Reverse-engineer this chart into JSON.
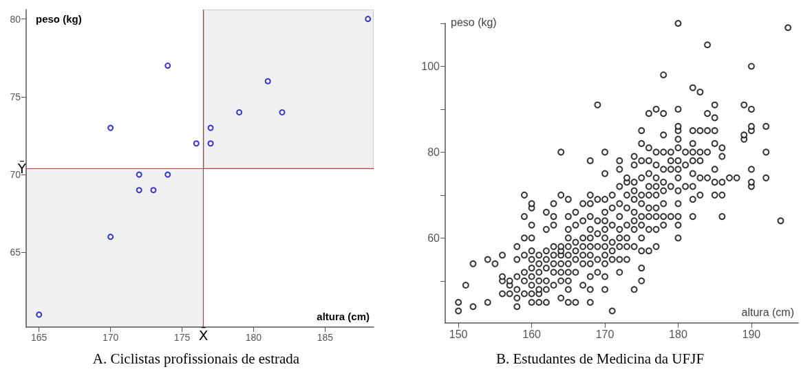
{
  "chart_data": [
    {
      "type": "scatter",
      "title": "A. Ciclistas profissionais de estrada",
      "xlabel": "altura (cm)",
      "ylabel": "peso (kg)",
      "x": [
        165,
        170,
        170,
        172,
        172,
        173,
        174,
        174,
        176,
        177,
        177,
        179,
        181,
        182,
        188
      ],
      "values": [
        61,
        73,
        66,
        70,
        69,
        69,
        77,
        70,
        72,
        73,
        72,
        74,
        76,
        74,
        80
      ],
      "color": "#0000cc",
      "marker": "circle",
      "grid": false,
      "xlim": [
        164.1,
        188.4
      ],
      "ylim": [
        60.2,
        80.6
      ],
      "xticks": [
        165,
        170,
        175,
        180,
        185
      ],
      "yticks": [
        65,
        70,
        75,
        80
      ],
      "ref_lines": [
        {
          "axis": "x",
          "value": 176.5,
          "label": "X̄",
          "color": "#cc3333"
        },
        {
          "axis": "y",
          "value": 70.4,
          "label": "Ȳ",
          "color": "#cc3333"
        }
      ]
    },
    {
      "type": "scatter",
      "title": "B. Estudantes de Medicina da UFJF",
      "xlabel": "altura (cm)",
      "ylabel": "peso (kg)",
      "x": [
        150,
        150,
        151,
        152,
        152,
        154,
        154,
        155,
        156,
        156,
        156,
        156,
        157,
        157,
        157,
        158,
        158,
        158,
        158,
        158,
        158,
        159,
        159,
        159,
        159,
        159,
        159,
        159,
        160,
        160,
        160,
        160,
        160,
        160,
        160,
        160,
        160,
        160,
        160,
        161,
        161,
        161,
        161,
        161,
        161,
        161,
        162,
        162,
        162,
        162,
        162,
        162,
        162,
        162,
        163,
        163,
        163,
        163,
        163,
        163,
        163,
        163,
        164,
        164,
        164,
        164,
        164,
        164,
        164,
        164,
        164,
        165,
        165,
        165,
        165,
        165,
        165,
        165,
        165,
        165,
        165,
        165,
        166,
        166,
        166,
        166,
        166,
        166,
        166,
        167,
        167,
        167,
        167,
        167,
        167,
        167,
        168,
        168,
        168,
        168,
        168,
        168,
        168,
        168,
        168,
        168,
        168,
        168,
        169,
        169,
        169,
        169,
        169,
        169,
        169,
        170,
        170,
        170,
        170,
        170,
        170,
        170,
        170,
        170,
        170,
        170,
        170,
        171,
        171,
        171,
        171,
        171,
        171,
        171,
        172,
        172,
        172,
        172,
        172,
        172,
        172,
        172,
        172,
        172,
        173,
        173,
        173,
        173,
        173,
        173,
        173,
        173,
        174,
        174,
        174,
        174,
        174,
        174,
        174,
        174,
        174,
        174,
        175,
        175,
        175,
        175,
        175,
        175,
        175,
        175,
        175,
        175,
        175,
        175,
        176,
        176,
        176,
        176,
        176,
        176,
        176,
        176,
        176,
        176,
        177,
        177,
        177,
        177,
        177,
        177,
        177,
        177,
        177,
        177,
        178,
        178,
        178,
        178,
        178,
        178,
        178,
        178,
        178,
        178,
        179,
        179,
        179,
        179,
        179,
        180,
        180,
        180,
        180,
        180,
        180,
        180,
        180,
        180,
        180,
        180,
        180,
        180,
        180,
        181,
        181,
        181,
        182,
        182,
        182,
        182,
        182,
        182,
        182,
        182,
        182,
        183,
        183,
        183,
        183,
        183,
        183,
        184,
        184,
        184,
        184,
        184,
        185,
        185,
        185,
        185,
        185,
        185,
        185,
        186,
        186,
        186,
        186,
        186,
        187,
        188,
        189,
        189,
        189,
        190,
        190,
        190,
        190,
        190,
        190,
        190,
        192,
        192,
        192,
        194,
        195
      ],
      "values": [
        43,
        45,
        49,
        44,
        54,
        45,
        55,
        54,
        47,
        50,
        51,
        56,
        47,
        49,
        50,
        44,
        46,
        48,
        51,
        55,
        58,
        47,
        50,
        52,
        56,
        60,
        65,
        70,
        45,
        47,
        49,
        51,
        53,
        55,
        57,
        60,
        63,
        67,
        68,
        45,
        47,
        48,
        50,
        52,
        54,
        56,
        45,
        48,
        50,
        53,
        55,
        57,
        62,
        66,
        49,
        52,
        54,
        56,
        58,
        63,
        65,
        68,
        46,
        50,
        52,
        54,
        56,
        57,
        58,
        70,
        80,
        45,
        48,
        50,
        52,
        54,
        56,
        58,
        60,
        62,
        65,
        69,
        45,
        52,
        55,
        57,
        59,
        63,
        66,
        49,
        54,
        56,
        58,
        60,
        64,
        68,
        45,
        48,
        51,
        54,
        56,
        58,
        60,
        62,
        65,
        68,
        70,
        78,
        52,
        55,
        58,
        61,
        64,
        69,
        91,
        48,
        51,
        54,
        56,
        58,
        60,
        62,
        64,
        66,
        69,
        75,
        80,
        43,
        55,
        57,
        59,
        63,
        67,
        70,
        52,
        55,
        58,
        60,
        62,
        65,
        68,
        72,
        76,
        78,
        55,
        58,
        60,
        63,
        67,
        70,
        73,
        74,
        48,
        58,
        62,
        64,
        66,
        69,
        71,
        73,
        77,
        79,
        50,
        53,
        57,
        60,
        63,
        65,
        68,
        70,
        74,
        78,
        82,
        85,
        57,
        62,
        65,
        67,
        70,
        72,
        75,
        78,
        81,
        89,
        58,
        62,
        65,
        67,
        70,
        72,
        74,
        77,
        80,
        90,
        63,
        65,
        68,
        71,
        73,
        76,
        80,
        84,
        89,
        98,
        65,
        72,
        76,
        78,
        80,
        60,
        63,
        65,
        68,
        71,
        74,
        76,
        78,
        81,
        83,
        85,
        86,
        90,
        110,
        72,
        77,
        80,
        65,
        69,
        72,
        75,
        78,
        80,
        82,
        85,
        95,
        70,
        74,
        78,
        80,
        85,
        94,
        74,
        80,
        85,
        89,
        105,
        70,
        73,
        76,
        82,
        85,
        88,
        91,
        65,
        70,
        73,
        79,
        81,
        74,
        74,
        83,
        84,
        91,
        72,
        73,
        76,
        85,
        86,
        90,
        100,
        74,
        80,
        86,
        64,
        109
      ],
      "color": "#000000",
      "marker": "circle",
      "grid": false,
      "xlim": [
        148.2,
        196.4
      ],
      "ylim": [
        40.2,
        110
      ],
      "xticks": [
        150,
        160,
        170,
        180,
        190
      ],
      "yticks": [
        {
          "value": 50,
          "label": null
        },
        60,
        {
          "value": 70,
          "label": null
        },
        80,
        {
          "value": 90,
          "label": null
        },
        100,
        {
          "value": 110,
          "label": null
        }
      ]
    }
  ]
}
